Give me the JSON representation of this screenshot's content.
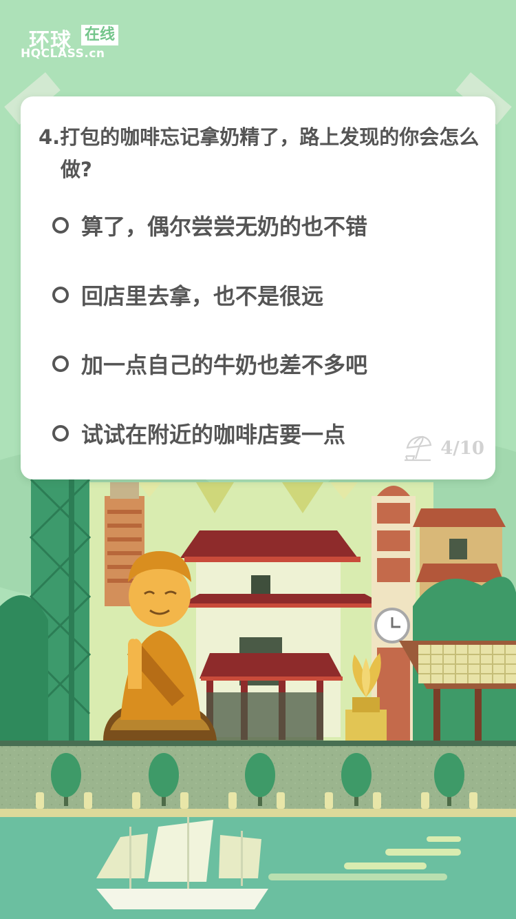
{
  "brand": {
    "name": "环球",
    "tag": "在线",
    "domain": "HQCLASS.cn"
  },
  "question": {
    "text": "4.打包的咖啡忘记拿奶精了，路上发现的你会怎么做?"
  },
  "options": [
    {
      "label": "算了，偶尔尝尝无奶的也不错"
    },
    {
      "label": "回店里去拿，也不是很远"
    },
    {
      "label": "加一点自己的牛奶也差不多吧"
    },
    {
      "label": "试试在附近的咖啡店要一点"
    }
  ],
  "progress": {
    "text": "4/10",
    "current": 4,
    "total": 10,
    "icon": "beach-umbrella-icon"
  },
  "colors": {
    "background": "#ade1b8",
    "card": "#ffffff",
    "text": "#555555",
    "muted": "#d2d2d2",
    "accent_green": "#3e9a68",
    "water": "#6bbfa0"
  }
}
